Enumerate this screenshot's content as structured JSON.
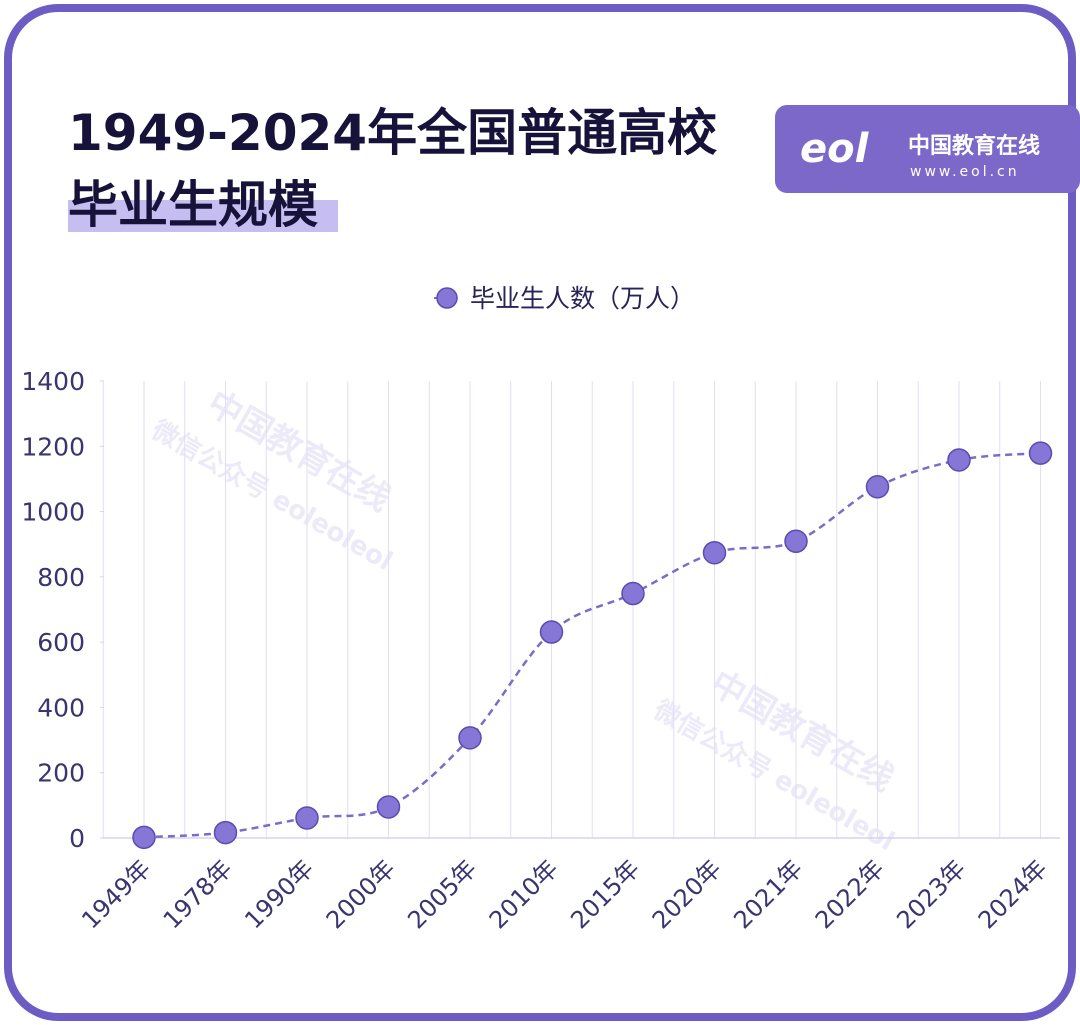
{
  "brand": {
    "logo": "eol",
    "name": "中国教育在线",
    "url": "www.eol.cn"
  },
  "watermarks": [
    "中国教育在线",
    "微信公众号 eoleoleol"
  ],
  "chart_data": {
    "type": "line",
    "title": [
      "1949-2024年全国普通高校",
      "毕业生规模"
    ],
    "categories": [
      "1949年",
      "1978年",
      "1990年",
      "2000年",
      "2005年",
      "2010年",
      "2015年",
      "2020年",
      "2021年",
      "2022年",
      "2023年",
      "2024年"
    ],
    "series": [
      {
        "name": "毕业生人数（万人）",
        "color": "#7b6cc9",
        "values": [
          2.1,
          16.5,
          61.4,
          95,
          306.8,
          631,
          749,
          874,
          909,
          1076,
          1158,
          1179
        ]
      }
    ],
    "ylim": [
      0,
      1400
    ],
    "yticks": [
      0,
      200,
      400,
      600,
      800,
      1000,
      1200,
      1400
    ],
    "grid": true,
    "legend": "top"
  }
}
